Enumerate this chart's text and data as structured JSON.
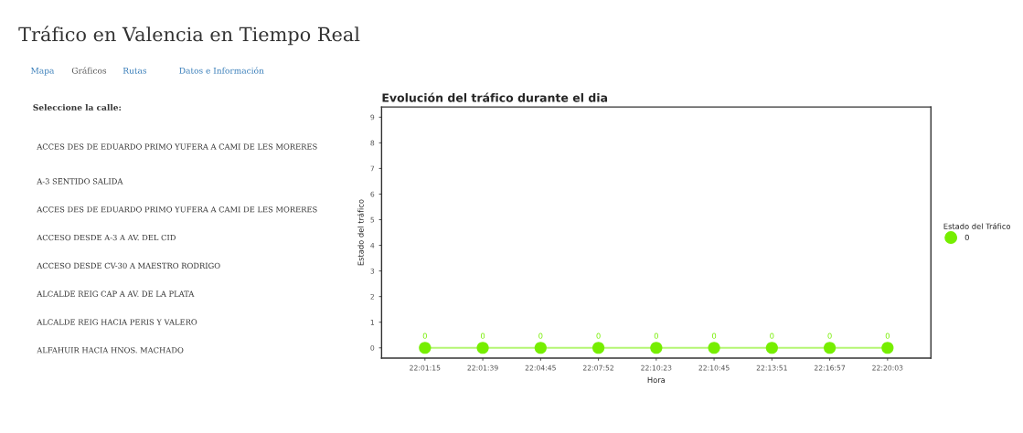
{
  "chart_data": {
    "type": "line",
    "title": "Evolución del tráfico durante el dia",
    "xlabel": "Hora",
    "ylabel": "Estado del tráfico",
    "legend_title": "Estado del Tráfico",
    "categories": [
      "22:01:15",
      "22:01:39",
      "22:04:45",
      "22:07:52",
      "22:10:23",
      "22:10:45",
      "22:13:51",
      "22:16:57",
      "22:20:03"
    ],
    "series": [
      {
        "name": "0",
        "color": "#76ee00",
        "values": [
          0,
          0,
          0,
          0,
          0,
          0,
          0,
          0,
          0
        ]
      }
    ],
    "ylim": [
      -0.4,
      9.4
    ],
    "yticks": [
      0,
      1,
      2,
      3,
      4,
      5,
      6,
      7,
      8,
      9
    ],
    "marker": "circle",
    "line_style": "solid",
    "data_labels": true,
    "grid": false,
    "legend": "right",
    "annotations": [
      "Tráfico en Valencia en Tiempo Real",
      "Mapa",
      "Gráficos",
      "Rutas",
      "Datos e Información",
      "Seleccione la calle:",
      "ACCES DES DE EDUARDO PRIMO YUFERA A CAMI DE LES MORERES",
      "A-3 SENTIDO SALIDA",
      "ACCES DES DE EDUARDO PRIMO YUFERA A CAMI DE LES MORERES",
      "ACCESO DESDE A-3 A AV. DEL CID",
      "ACCESO DESDE CV-30 A MAESTRO RODRIGO",
      "ALCALDE REIG CAP A AV. DE LA PLATA",
      "ALCALDE REIG HACIA PERIS Y VALERO",
      "ALFAHUIR HACIA HNOS. MACHADO"
    ]
  }
}
